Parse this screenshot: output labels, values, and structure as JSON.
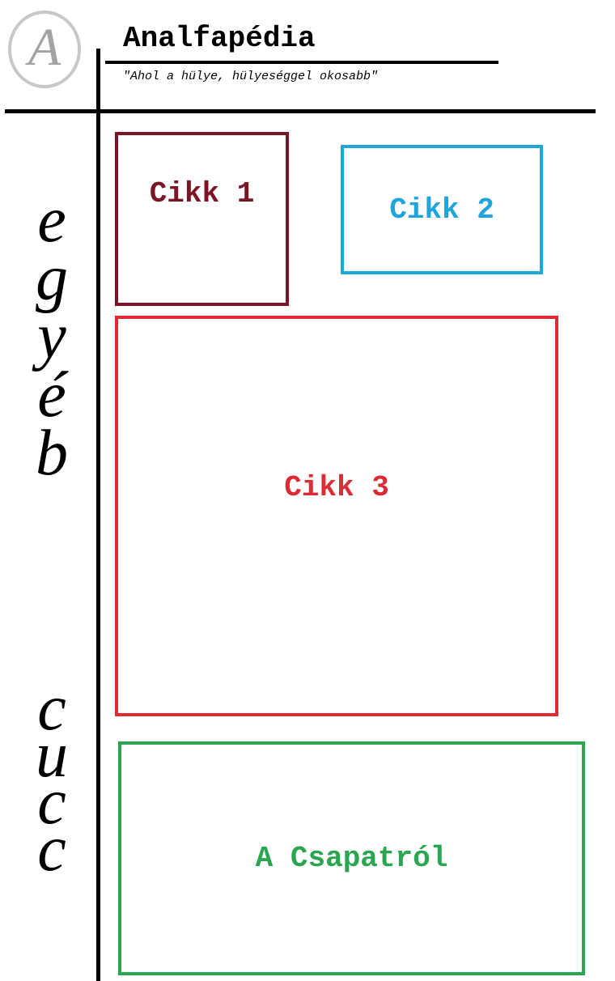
{
  "header": {
    "logo_letter": "A",
    "title": "Analfapédia",
    "slogan": "\"Ahol a hülye, hülyeséggel okosabb\""
  },
  "sidebar": {
    "word_top": [
      "e",
      "g",
      "y",
      "é",
      "b"
    ],
    "word_bottom": [
      "c",
      "u",
      "c",
      "c"
    ]
  },
  "articles": [
    {
      "label": "Cikk 1",
      "color": "#7b1423"
    },
    {
      "label": "Cikk 2",
      "color": "#1fa4dc"
    },
    {
      "label": "Cikk 3",
      "color": "#dd2b35"
    }
  ],
  "about": {
    "label": "A Csapatról",
    "color": "#2aa651"
  }
}
